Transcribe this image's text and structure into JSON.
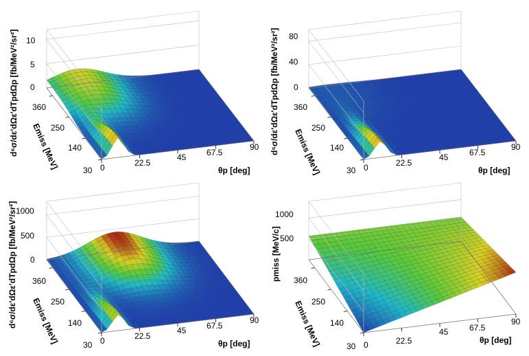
{
  "figure": {
    "colors": {
      "low": "#1e3fb0",
      "mid1": "#1fb8c8",
      "mid2": "#58c93a",
      "mid3": "#d9d024",
      "high": "#a82512"
    }
  },
  "chart_data": [
    {
      "type": "surface",
      "panel": "top-left",
      "zlabel": "d⁶σ/dε'dΩε'dTpdΩp [fb/MeV²/sr²]",
      "xlabel": "θp [deg]",
      "ylabel": "Emiss [MeV]",
      "x_ticks": [
        "0",
        "22.5",
        "45",
        "67.5",
        "90"
      ],
      "y_ticks": [
        "30",
        "140",
        "250",
        "360"
      ],
      "z_ticks": [
        "0",
        "5",
        "10"
      ],
      "xlim": [
        0,
        90
      ],
      "ylim": [
        30,
        400
      ],
      "zlim": [
        0,
        12
      ],
      "ridge": {
        "theta": 10,
        "amplitude": 4.2
      },
      "plateau": {
        "theta_center": 18,
        "height": 3.2
      }
    },
    {
      "type": "surface",
      "panel": "top-right",
      "zlabel": "d⁶σ/dε'dΩε'dTpdΩp [fb/MeV²/sr²]",
      "xlabel": "θp [deg]",
      "ylabel": "Emiss [MeV]",
      "x_ticks": [
        "0",
        "22.5",
        "45",
        "67.5",
        "90"
      ],
      "y_ticks": [
        "30",
        "140",
        "250",
        "360"
      ],
      "z_ticks": [
        "0",
        "40",
        "80"
      ],
      "xlim": [
        0,
        90
      ],
      "ylim": [
        30,
        400
      ],
      "zlim": [
        0,
        100
      ],
      "ridge": {
        "theta": 10,
        "amplitude": 28
      },
      "plateau": {
        "theta_center": 12,
        "height": 2
      }
    },
    {
      "type": "surface",
      "panel": "bottom-left",
      "zlabel": "d⁶σ/dε'dΩε'dTpdΩp [fb/MeV²/sr²]",
      "xlabel": "θp [deg]",
      "ylabel": "Emiss [MeV]",
      "x_ticks": [
        "0",
        "22.5",
        "45",
        "67.5",
        "90"
      ],
      "y_ticks": [
        "30",
        "140",
        "250",
        "360"
      ],
      "z_ticks": [
        "0",
        "500",
        "1000"
      ],
      "xlim": [
        0,
        90
      ],
      "ylim": [
        30,
        400
      ],
      "zlim": [
        0,
        1300
      ],
      "ridge": {
        "theta": 10,
        "amplitude": 360
      },
      "plateau": {
        "theta_center": 40,
        "height": 440
      }
    },
    {
      "type": "surface",
      "panel": "bottom-right",
      "zlabel": "pmiss [MeV/c]",
      "xlabel": "θp [deg]",
      "ylabel": "Emiss [MeV]",
      "x_ticks": [
        "0",
        "22.5",
        "45",
        "67.5",
        "90"
      ],
      "y_ticks": [
        "30",
        "140",
        "250",
        "360"
      ],
      "z_ticks": [
        "500",
        "1000"
      ],
      "xlim": [
        0,
        90
      ],
      "ylim": [
        30,
        400
      ],
      "zlim": [
        0,
        1400
      ],
      "plane": {
        "z_at_theta0_emin": 0,
        "z_at_theta0_emax": 570,
        "z_at_theta90_emin": 1000,
        "z_at_theta90_emax": 580
      }
    }
  ]
}
